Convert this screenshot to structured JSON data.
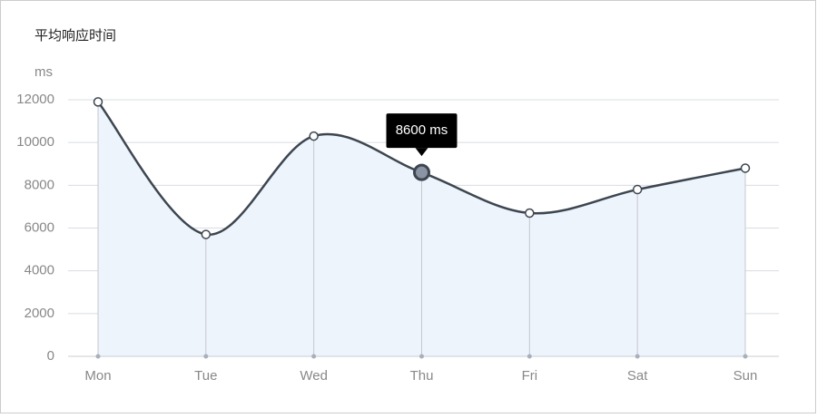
{
  "chart_data": {
    "type": "line",
    "title": "平均响应时间",
    "y_label": "ms",
    "categories": [
      "Mon",
      "Tue",
      "Wed",
      "Thu",
      "Fri",
      "Sat",
      "Sun"
    ],
    "values": [
      11900,
      5700,
      10300,
      8600,
      6700,
      7800,
      8800
    ],
    "value_labels": [
      null,
      null,
      null,
      "8600 ms",
      null,
      null,
      null
    ],
    "color": "#3d4650",
    "area_color": "#eef4fc",
    "ylim": [
      0,
      12000
    ],
    "yticks": [
      0,
      2000,
      4000,
      6000,
      8000,
      10000,
      12000
    ],
    "grid": true
  }
}
